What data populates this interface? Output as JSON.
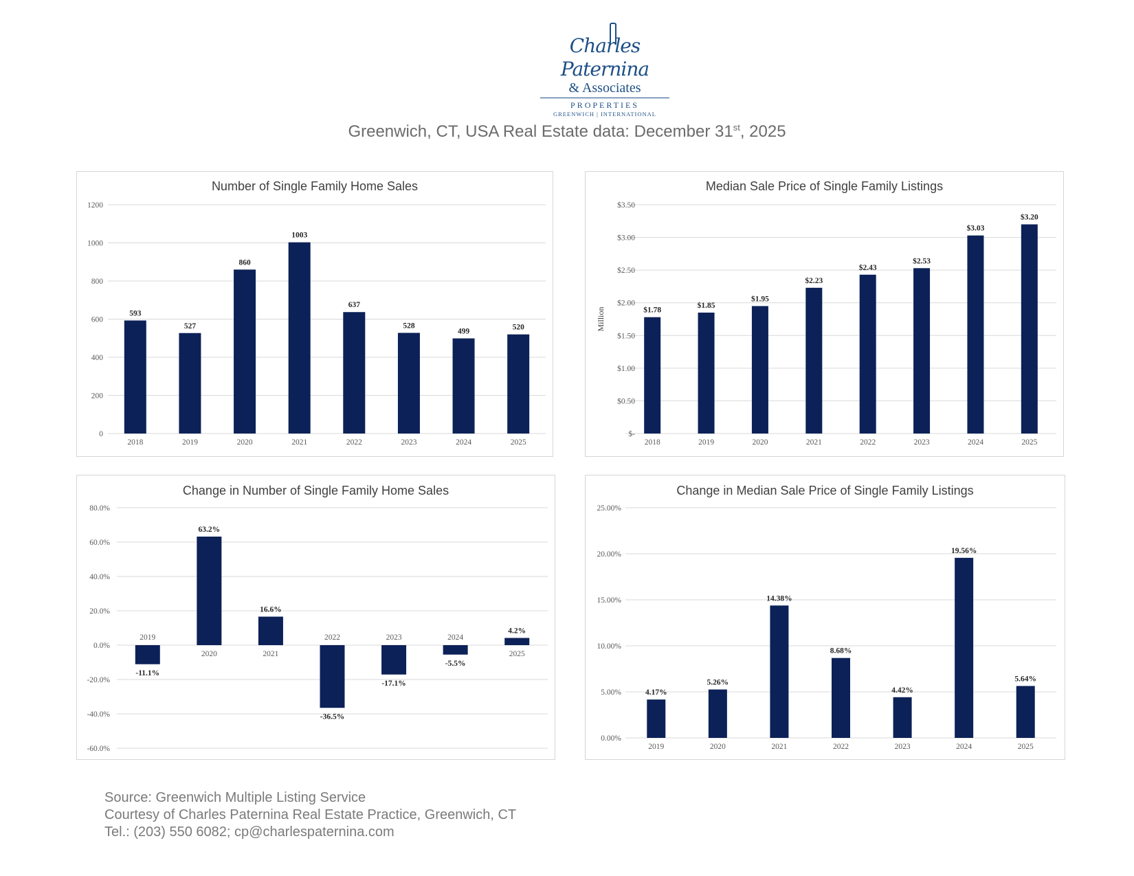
{
  "logo": {
    "script_name": "Charles Paternina",
    "associates": "& Associates",
    "properties": "PROPERTIES",
    "subline": "GREENWICH | INTERNATIONAL"
  },
  "title": {
    "prefix": "Greenwich, CT, USA Real Estate data: December 31",
    "sup": "st",
    "suffix": ", 2025"
  },
  "colors": {
    "bar": "#0c2157",
    "grid": "#d9d9d9"
  },
  "chart_data": [
    {
      "id": "sales",
      "type": "bar",
      "title": "Number of Single Family Home Sales",
      "categories": [
        "2018",
        "2019",
        "2020",
        "2021",
        "2022",
        "2023",
        "2024",
        "2025"
      ],
      "values": [
        593,
        527,
        860,
        1003,
        637,
        528,
        499,
        520
      ],
      "data_labels": [
        "593",
        "527",
        "860",
        "1003",
        "637",
        "528",
        "499",
        "520"
      ],
      "ylim": [
        0,
        1200
      ],
      "yticks": [
        0,
        200,
        400,
        600,
        800,
        1000,
        1200
      ],
      "ytick_labels": [
        "0",
        "200",
        "400",
        "600",
        "800",
        "1000",
        "1200"
      ],
      "ylabel": "",
      "xlabel": "",
      "grid": true
    },
    {
      "id": "price",
      "type": "bar",
      "title": "Median Sale Price of Single Family Listings",
      "categories": [
        "2018",
        "2019",
        "2020",
        "2021",
        "2022",
        "2023",
        "2024",
        "2025"
      ],
      "values": [
        1.78,
        1.85,
        1.95,
        2.23,
        2.43,
        2.53,
        3.03,
        3.2
      ],
      "data_labels": [
        "$1.78",
        "$1.85",
        "$1.95",
        "$2.23",
        "$2.43",
        "$2.53",
        "$3.03",
        "$3.20"
      ],
      "ylim": [
        0,
        3.5
      ],
      "yticks": [
        0,
        0.5,
        1.0,
        1.5,
        2.0,
        2.5,
        3.0,
        3.5
      ],
      "ytick_labels": [
        "$-",
        "$0.50",
        "$1.00",
        "$1.50",
        "$2.00",
        "$2.50",
        "$3.00",
        "$3.50"
      ],
      "ylabel": "Million",
      "xlabel": "",
      "grid": true
    },
    {
      "id": "sales_change",
      "type": "bar",
      "title": "Change in Number of Single Family Home Sales",
      "categories": [
        "2019",
        "2020",
        "2021",
        "2022",
        "2023",
        "2024",
        "2025"
      ],
      "values": [
        -11.1,
        63.2,
        16.6,
        -36.5,
        -17.1,
        -5.5,
        4.2
      ],
      "data_labels": [
        "-11.1%",
        "63.2%",
        "16.6%",
        "-36.5%",
        "-17.1%",
        "-5.5%",
        "4.2%"
      ],
      "ylim": [
        -60,
        80
      ],
      "yticks": [
        -60,
        -40,
        -20,
        0,
        20,
        40,
        60,
        80
      ],
      "ytick_labels": [
        "-60.0%",
        "-40.0%",
        "-20.0%",
        "0.0%",
        "20.0%",
        "40.0%",
        "60.0%",
        "80.0%"
      ],
      "ylabel": "",
      "xlabel": "",
      "grid": true
    },
    {
      "id": "price_change",
      "type": "bar",
      "title": "Change in Median Sale Price of Single Family Listings",
      "categories": [
        "2019",
        "2020",
        "2021",
        "2022",
        "2023",
        "2024",
        "2025"
      ],
      "values": [
        4.17,
        5.26,
        14.38,
        8.68,
        4.42,
        19.56,
        5.64
      ],
      "data_labels": [
        "4.17%",
        "5.26%",
        "14.38%",
        "8.68%",
        "4.42%",
        "19.56%",
        "5.64%"
      ],
      "ylim": [
        0,
        25
      ],
      "yticks": [
        0,
        5,
        10,
        15,
        20,
        25
      ],
      "ytick_labels": [
        "0.00%",
        "5.00%",
        "10.00%",
        "15.00%",
        "20.00%",
        "25.00%"
      ],
      "ylabel": "",
      "xlabel": "",
      "grid": true
    }
  ],
  "footer": {
    "source": "Source: Greenwich Multiple Listing Service",
    "courtesy": "Courtesy of Charles Paternina Real Estate Practice, Greenwich, CT",
    "contact": "Tel.: (203) 550 6082; cp@charlespaternina.com"
  }
}
